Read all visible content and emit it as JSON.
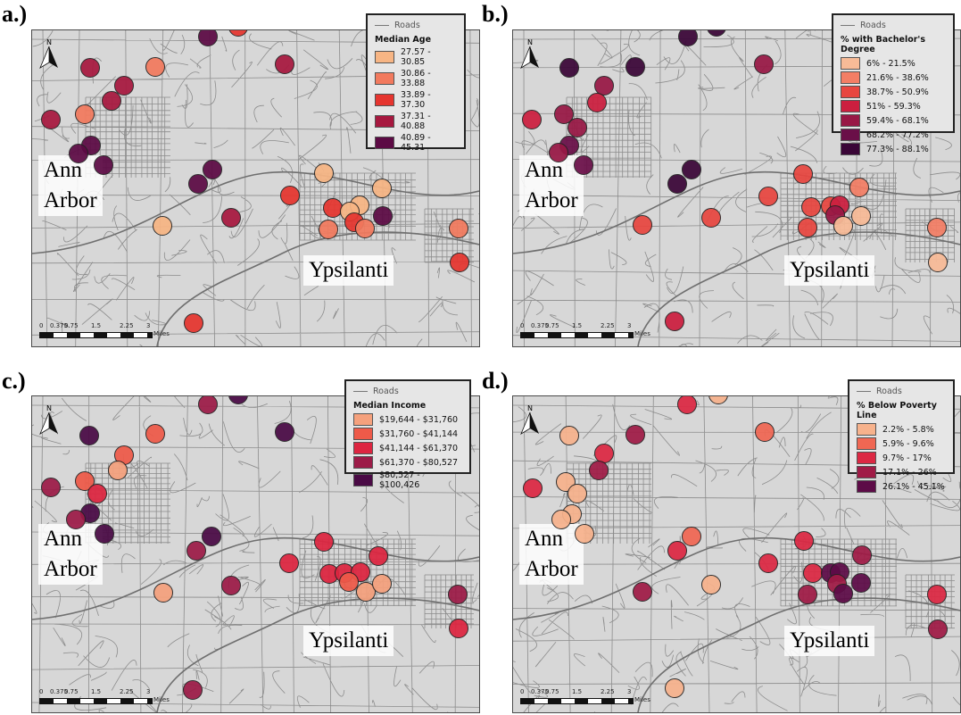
{
  "panels": [
    {
      "label": "a.)",
      "legend": {
        "roads_label": "Roads",
        "title": "Median Age",
        "items": [
          {
            "label": "27.57 - 30.85",
            "color": "#f7b584"
          },
          {
            "label": "30.86 - 33.88",
            "color": "#f27a5e"
          },
          {
            "label": "33.89 - 37.30",
            "color": "#e6352f"
          },
          {
            "label": "37.31 - 40.88",
            "color": "#a7183f"
          },
          {
            "label": "40.89 - 45.31",
            "color": "#5c0a44"
          }
        ]
      },
      "cities": [
        "Ann",
        "Arbor",
        "Ypsilanti"
      ],
      "dots": [
        [
          266,
          29,
          2
        ],
        [
          232,
          40,
          4
        ],
        [
          173,
          74,
          1
        ],
        [
          100,
          75,
          3
        ],
        [
          318,
          71,
          3
        ],
        [
          138,
          95,
          3
        ],
        [
          124,
          112,
          3
        ],
        [
          94,
          127,
          1
        ],
        [
          56,
          133,
          3
        ],
        [
          101,
          162,
          4
        ],
        [
          87,
          171,
          4
        ],
        [
          115,
          184,
          4
        ],
        [
          237,
          189,
          4
        ],
        [
          221,
          205,
          4
        ],
        [
          258,
          243,
          3
        ],
        [
          181,
          252,
          0
        ],
        [
          362,
          193,
          0
        ],
        [
          427,
          210,
          0
        ],
        [
          324,
          218,
          2
        ],
        [
          372,
          232,
          2
        ],
        [
          402,
          229,
          0
        ],
        [
          391,
          236,
          0
        ],
        [
          396,
          248,
          2
        ],
        [
          428,
          241,
          4
        ],
        [
          367,
          256,
          1
        ],
        [
          408,
          255,
          1
        ],
        [
          513,
          255,
          1
        ],
        [
          514,
          293,
          2
        ],
        [
          216,
          361,
          2
        ]
      ]
    },
    {
      "label": "b.)",
      "legend": {
        "roads_label": "Roads",
        "title": "% with Bachelor's Degree",
        "items": [
          {
            "label": "6% - 21.5%",
            "color": "#f8bb97"
          },
          {
            "label": "21.6% - 38.6%",
            "color": "#f37e65"
          },
          {
            "label": "38.7% - 50.9%",
            "color": "#e84640"
          },
          {
            "label": "51% - 59.3%",
            "color": "#cc1f3f"
          },
          {
            "label": "59.4% - 68.1%",
            "color": "#981845"
          },
          {
            "label": "68.2% - 77.2%",
            "color": "#6a0f48"
          },
          {
            "label": "77.3% - 88.1%",
            "color": "#3a0637"
          }
        ]
      },
      "cities": [
        "Ann",
        "Arbor",
        "Ypsilanti"
      ],
      "dots": [
        [
          802,
          29,
          6
        ],
        [
          770,
          40,
          6
        ],
        [
          711,
          74,
          6
        ],
        [
          637,
          75,
          6
        ],
        [
          855,
          71,
          4
        ],
        [
          676,
          95,
          4
        ],
        [
          668,
          114,
          3
        ],
        [
          631,
          127,
          4
        ],
        [
          595,
          133,
          3
        ],
        [
          646,
          142,
          4
        ],
        [
          637,
          162,
          5
        ],
        [
          625,
          170,
          4
        ],
        [
          653,
          184,
          5
        ],
        [
          774,
          189,
          6
        ],
        [
          758,
          205,
          6
        ],
        [
          899,
          194,
          2
        ],
        [
          962,
          209,
          1
        ],
        [
          860,
          219,
          2
        ],
        [
          908,
          231,
          2
        ],
        [
          930,
          230,
          2
        ],
        [
          940,
          229,
          3
        ],
        [
          935,
          240,
          4
        ],
        [
          944,
          252,
          0
        ],
        [
          964,
          241,
          0
        ],
        [
          904,
          254,
          2
        ],
        [
          1049,
          254,
          1
        ],
        [
          1050,
          293,
          0
        ],
        [
          719,
          251,
          2
        ],
        [
          796,
          243,
          2
        ],
        [
          755,
          359,
          3
        ]
      ]
    },
    {
      "label": "c.)",
      "legend": {
        "roads_label": "Roads",
        "title": "Median Income",
        "items": [
          {
            "label": "$19,644   -  $31,760",
            "color": "#f5a17d"
          },
          {
            "label": "$31,760   -  $41,144",
            "color": "#ee5a49"
          },
          {
            "label": "$41,144   -  $61,370",
            "color": "#dd2540"
          },
          {
            "label": "$61,370   -  $80,527",
            "color": "#9c1b47"
          },
          {
            "label": "$80,527   -  $100,426",
            "color": "#4a0a45"
          }
        ]
      },
      "cities": [
        "Ann",
        "Arbor",
        "Ypsilanti"
      ],
      "dots": [
        [
          266,
          441,
          4
        ],
        [
          232,
          452,
          3
        ],
        [
          173,
          485,
          1
        ],
        [
          99,
          487,
          4
        ],
        [
          318,
          483,
          4
        ],
        [
          138,
          509,
          1
        ],
        [
          131,
          526,
          0
        ],
        [
          94,
          538,
          1
        ],
        [
          56,
          545,
          3
        ],
        [
          108,
          552,
          2
        ],
        [
          100,
          574,
          4
        ],
        [
          84,
          581,
          3
        ],
        [
          116,
          597,
          4
        ],
        [
          236,
          600,
          4
        ],
        [
          219,
          616,
          3
        ],
        [
          258,
          655,
          3
        ],
        [
          182,
          663,
          0
        ],
        [
          362,
          606,
          2
        ],
        [
          423,
          622,
          2
        ],
        [
          323,
          630,
          2
        ],
        [
          368,
          642,
          2
        ],
        [
          385,
          641,
          2
        ],
        [
          403,
          640,
          2
        ],
        [
          390,
          651,
          1
        ],
        [
          409,
          662,
          0
        ],
        [
          427,
          653,
          0
        ],
        [
          512,
          665,
          3
        ],
        [
          513,
          703,
          2
        ],
        [
          215,
          772,
          3
        ]
      ]
    },
    {
      "label": "d.)",
      "legend": {
        "roads_label": "Roads",
        "title": "% Below Poverty Line",
        "items": [
          {
            "label": "2.2% - 5.8%",
            "color": "#f7b28c"
          },
          {
            "label": "5.9% - 9.6%",
            "color": "#f06753"
          },
          {
            "label": "9.7% - 17%",
            "color": "#dc2843"
          },
          {
            "label": "17.1% - 26%",
            "color": "#a01b46"
          },
          {
            "label": "26.1% - 45.1%",
            "color": "#5d0b47"
          }
        ]
      },
      "cities": [
        "Ann",
        "Arbor",
        "Ypsilanti"
      ],
      "dots": [
        [
          804,
          441,
          0
        ],
        [
          769,
          452,
          2
        ],
        [
          711,
          486,
          3
        ],
        [
          637,
          487,
          0
        ],
        [
          856,
          483,
          1
        ],
        [
          676,
          507,
          2
        ],
        [
          670,
          526,
          3
        ],
        [
          633,
          539,
          0
        ],
        [
          596,
          546,
          2
        ],
        [
          646,
          552,
          0
        ],
        [
          640,
          575,
          0
        ],
        [
          628,
          581,
          0
        ],
        [
          654,
          597,
          0
        ],
        [
          774,
          600,
          1
        ],
        [
          758,
          616,
          2
        ],
        [
          900,
          605,
          2
        ],
        [
          965,
          621,
          3
        ],
        [
          860,
          630,
          2
        ],
        [
          910,
          641,
          2
        ],
        [
          930,
          641,
          4
        ],
        [
          940,
          640,
          4
        ],
        [
          937,
          653,
          3
        ],
        [
          944,
          664,
          4
        ],
        [
          964,
          652,
          4
        ],
        [
          904,
          665,
          3
        ],
        [
          1049,
          665,
          2
        ],
        [
          1050,
          704,
          3
        ],
        [
          719,
          662,
          3
        ],
        [
          796,
          654,
          0
        ],
        [
          755,
          770,
          0
        ]
      ]
    }
  ],
  "scalebar": {
    "ticks": [
      "0",
      "0.375",
      "0.75",
      "1.5",
      "2.25",
      "3"
    ],
    "unit": "Miles"
  },
  "north_label": "N"
}
